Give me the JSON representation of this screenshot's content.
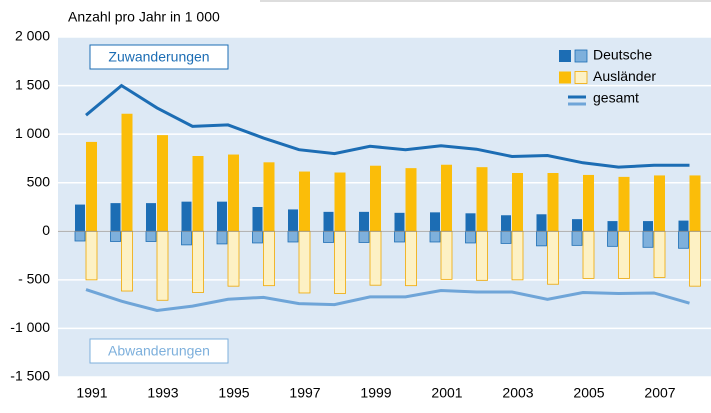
{
  "chart_data": {
    "type": "bar-line",
    "y_axis_label": "Anzahl pro Jahr in 1 000",
    "annotations": [
      "Zuwanderungen",
      "Abwanderungen"
    ],
    "categories": [
      "1991",
      null,
      "1993",
      null,
      "1995",
      null,
      "1997",
      null,
      "1999",
      null,
      "2001",
      null,
      "2003",
      null,
      "2005",
      null,
      "2007",
      null
    ],
    "series": [
      {
        "name": "Deutsche",
        "color": "#1c6db4",
        "out_color": "#7eb0dc",
        "values": [
          275,
          290,
          290,
          305,
          305,
          250,
          225,
          200,
          200,
          190,
          195,
          185,
          165,
          175,
          125,
          105,
          105,
          110
        ],
        "out_values": [
          -100,
          -105,
          -105,
          -140,
          -130,
          -120,
          -110,
          -115,
          -115,
          -110,
          -110,
          -120,
          -125,
          -150,
          -145,
          -155,
          -165,
          -175
        ]
      },
      {
        "name": "Ausländer",
        "color": "#fbbd09",
        "out_color": "#fdf1c4",
        "values": [
          920,
          1210,
          990,
          775,
          790,
          710,
          615,
          605,
          675,
          650,
          685,
          660,
          600,
          600,
          580,
          560,
          575,
          575
        ],
        "out_values": [
          -500,
          -615,
          -710,
          -630,
          -565,
          -560,
          -635,
          -640,
          -555,
          -560,
          -495,
          -505,
          -500,
          -545,
          -485,
          -485,
          -475,
          -565
        ]
      },
      {
        "name": "gesamt",
        "color": "#1c6db4",
        "out_color": "#6fa5d8",
        "values": [
          1195,
          1500,
          1270,
          1080,
          1095,
          960,
          840,
          800,
          875,
          840,
          880,
          845,
          770,
          780,
          705,
          660,
          680,
          680
        ],
        "out_values": [
          -600,
          -720,
          -815,
          -770,
          -700,
          -680,
          -745,
          -755,
          -675,
          -675,
          -610,
          -625,
          -625,
          -700,
          -630,
          -640,
          -635,
          -740
        ]
      }
    ],
    "ylim": [
      -1500,
      2000
    ],
    "yticks": [
      {
        "value": -1500,
        "label": "-1 500"
      },
      {
        "value": -1000,
        "label": "-1 000"
      },
      {
        "value": -500,
        "label": "- 500"
      },
      0,
      500,
      {
        "value": 1000,
        "label": "1 000"
      },
      {
        "value": 1500,
        "label": "1 500"
      },
      {
        "value": 2000,
        "label": "2 000"
      }
    ],
    "grid": true
  }
}
